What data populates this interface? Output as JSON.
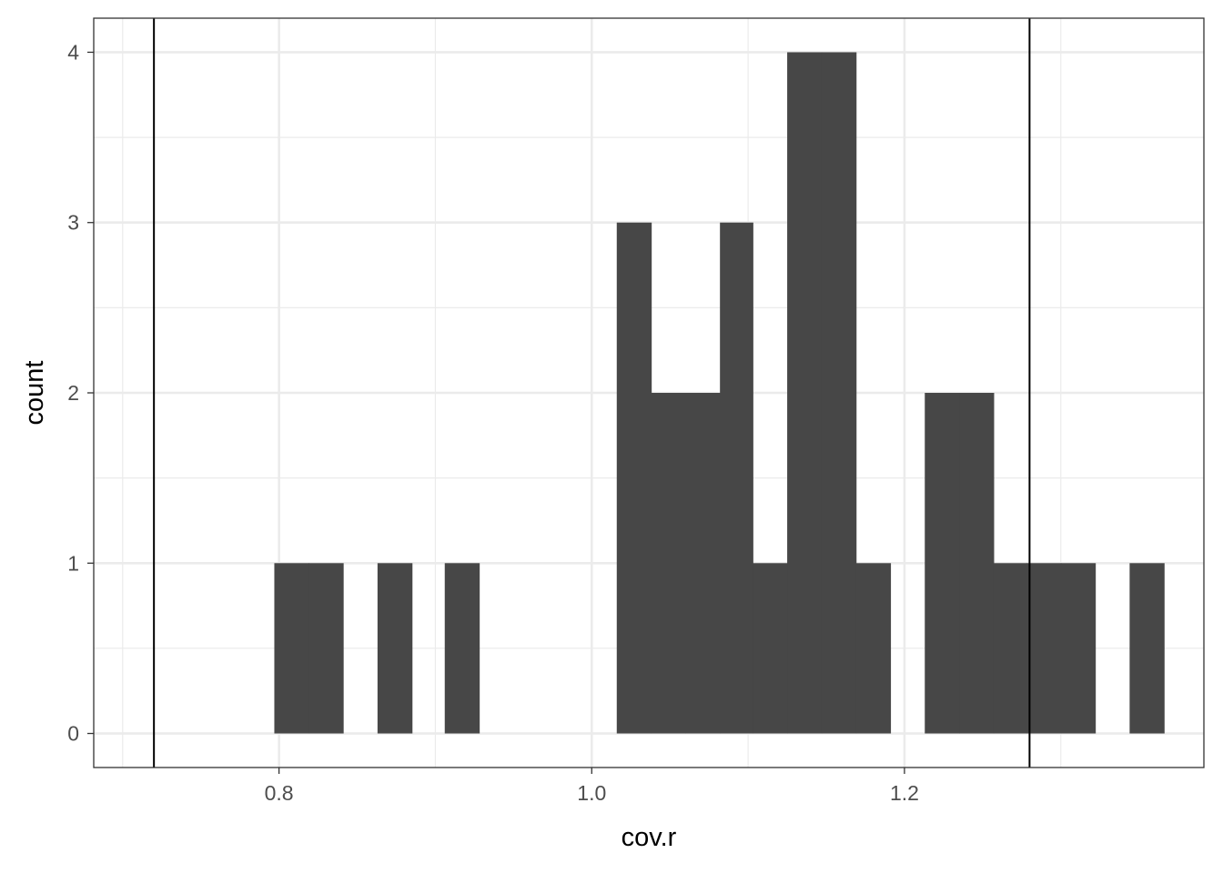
{
  "chart_data": {
    "type": "bar",
    "xlabel": "cov.r",
    "ylabel": "count",
    "xlim": [
      0.6815,
      1.3915
    ],
    "ylim": [
      -0.2,
      4.2
    ],
    "x_ticks": [
      0.8,
      1.0,
      1.2
    ],
    "x_tick_labels": [
      "0.8",
      "1.0",
      "1.2"
    ],
    "y_ticks": [
      0,
      1,
      2,
      3,
      4
    ],
    "y_tick_labels": [
      "0",
      "1",
      "2",
      "3",
      "4"
    ],
    "bin_width": 0.0219,
    "bins": [
      {
        "x0": 0.797,
        "x1": 0.819,
        "count": 1
      },
      {
        "x0": 0.819,
        "x1": 0.841,
        "count": 1
      },
      {
        "x0": 0.863,
        "x1": 0.885,
        "count": 1
      },
      {
        "x0": 0.906,
        "x1": 0.928,
        "count": 1
      },
      {
        "x0": 1.016,
        "x1": 1.038,
        "count": 3
      },
      {
        "x0": 1.038,
        "x1": 1.06,
        "count": 2
      },
      {
        "x0": 1.06,
        "x1": 1.082,
        "count": 2
      },
      {
        "x0": 1.082,
        "x1": 1.103,
        "count": 3
      },
      {
        "x0": 1.103,
        "x1": 1.125,
        "count": 1
      },
      {
        "x0": 1.125,
        "x1": 1.147,
        "count": 4
      },
      {
        "x0": 1.147,
        "x1": 1.169,
        "count": 4
      },
      {
        "x0": 1.169,
        "x1": 1.191,
        "count": 1
      },
      {
        "x0": 1.213,
        "x1": 1.235,
        "count": 2
      },
      {
        "x0": 1.235,
        "x1": 1.257,
        "count": 2
      },
      {
        "x0": 1.257,
        "x1": 1.278,
        "count": 1
      },
      {
        "x0": 1.278,
        "x1": 1.3,
        "count": 1
      },
      {
        "x0": 1.3,
        "x1": 1.322,
        "count": 1
      },
      {
        "x0": 1.344,
        "x1": 1.366,
        "count": 1
      }
    ],
    "vlines": [
      0.72,
      1.28
    ],
    "grid": true,
    "bar_color": "#474747",
    "grid_color": "#ebebeb",
    "legend": "none"
  }
}
